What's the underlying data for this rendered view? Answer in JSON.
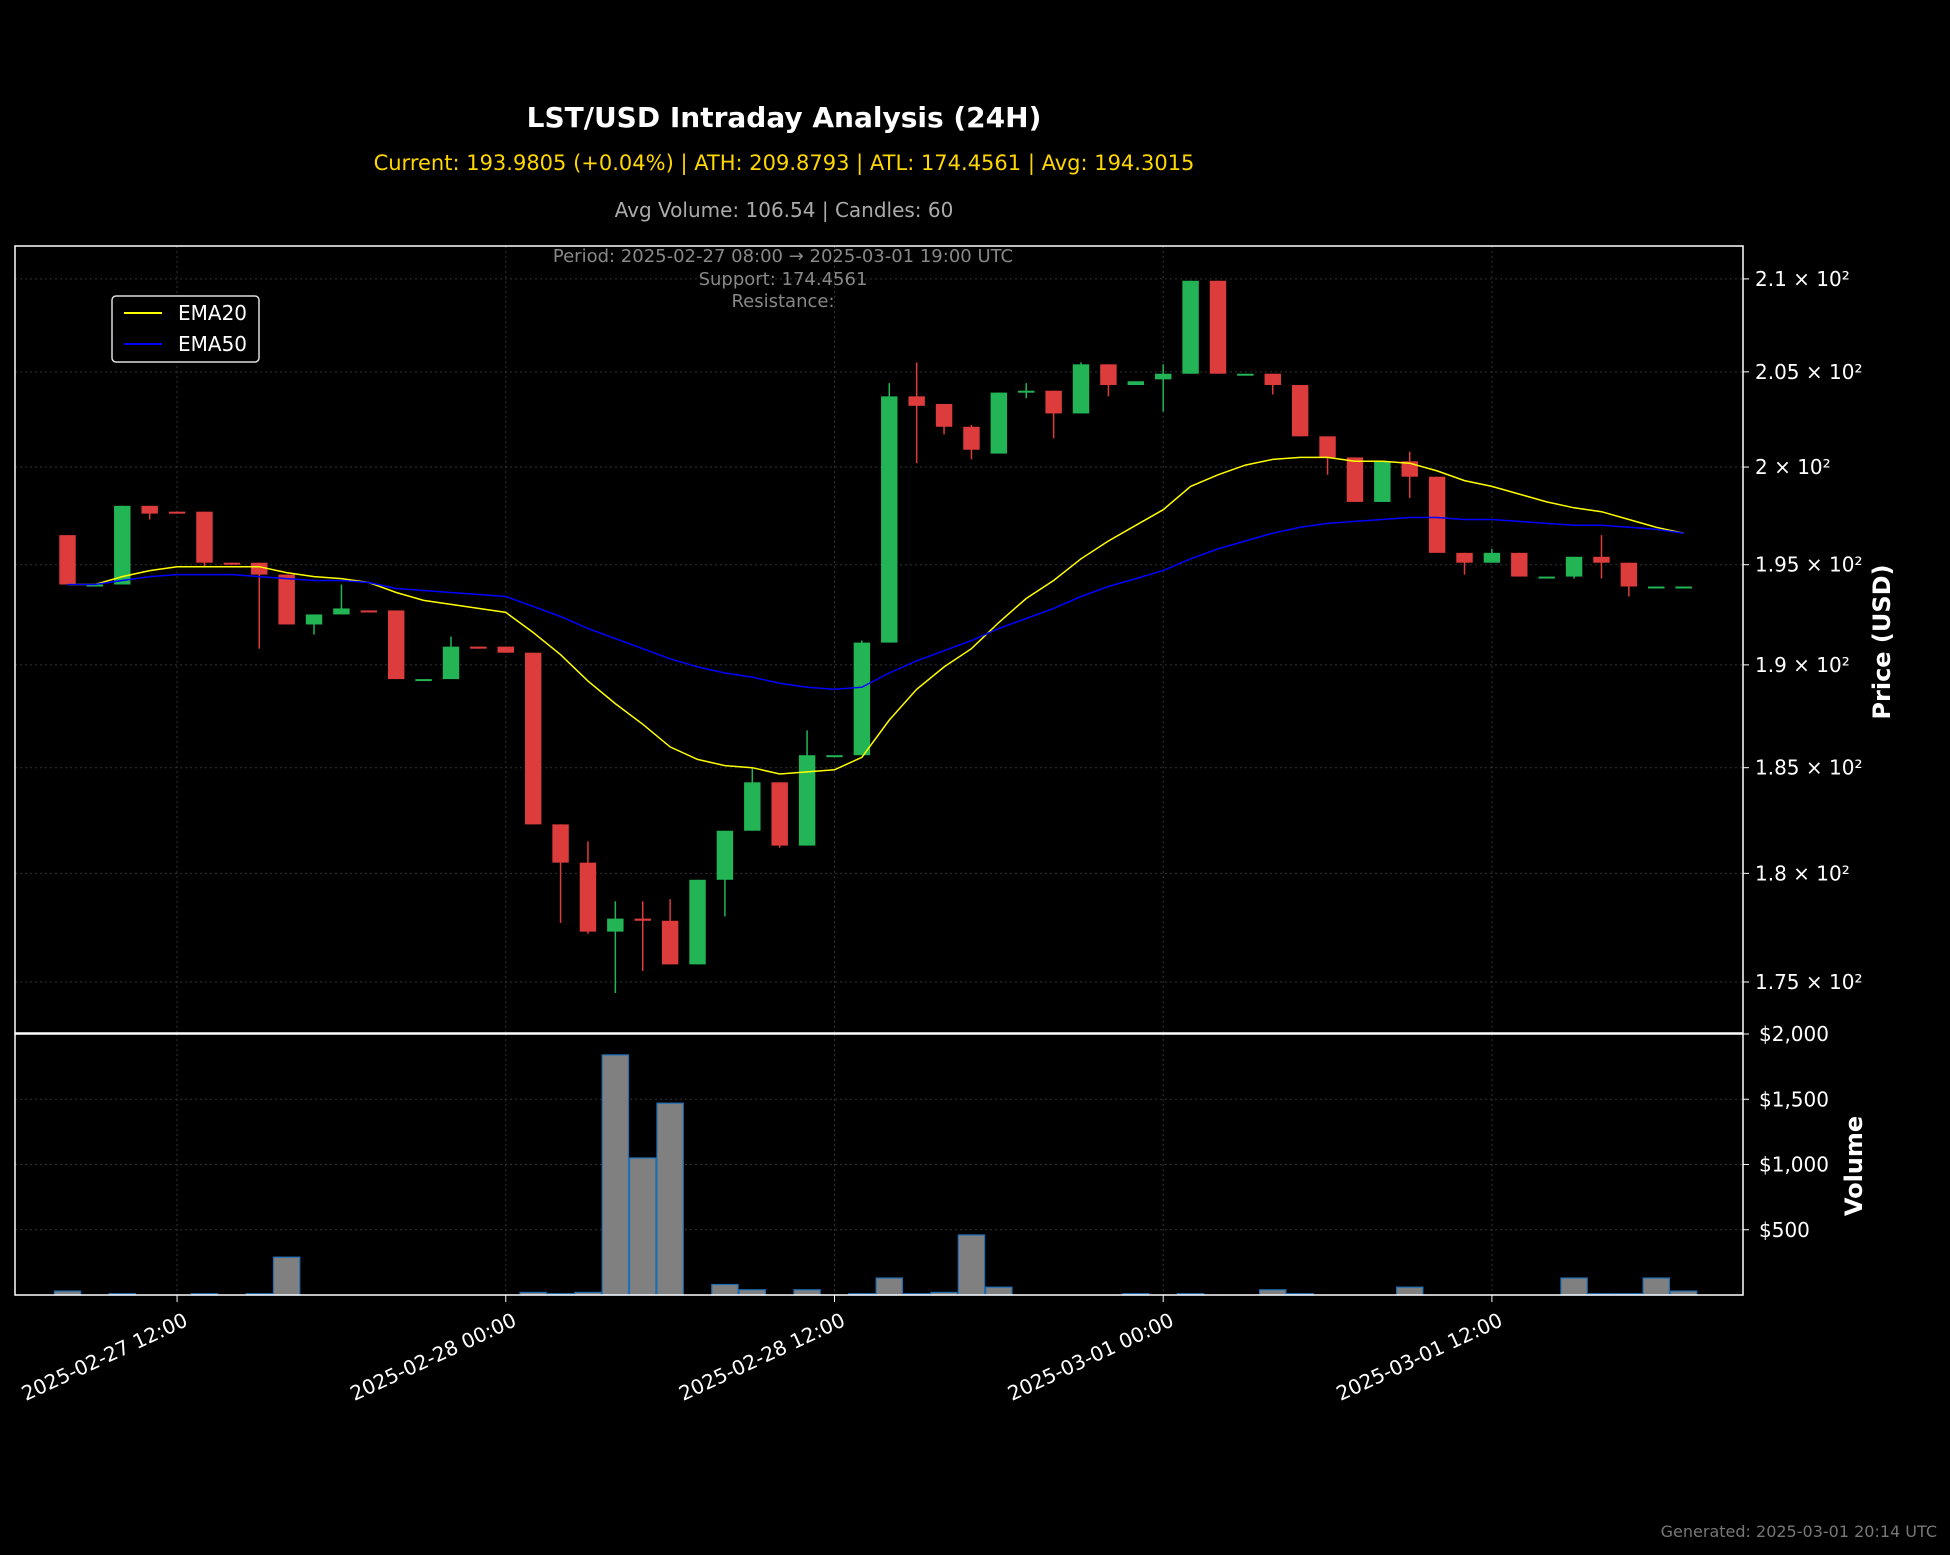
{
  "header": {
    "title": "LST/USD Intraday Analysis (24H)",
    "stats": "Current: 193.9805 (+0.04%) | ATH: 209.8793 | ATL: 174.4561 | Avg: 194.3015",
    "volume_info": "Avg Volume: 106.54 | Candles: 60"
  },
  "annotations": {
    "period": "Period: 2025-02-27 08:00 → 2025-03-01 19:00 UTC",
    "support": "Support: 174.4561",
    "resistance": "Resistance:"
  },
  "footer": {
    "generated": "Generated: 2025-03-01 20:14 UTC"
  },
  "colors": {
    "background": "#000000",
    "up": "#22b455",
    "down": "#dc3c3c",
    "ema20": "#ffff00",
    "ema50": "#0000ff",
    "volume": "#808080",
    "volume_edge": "#1f6fb4",
    "title": "#ffffff",
    "stats": "#ffd700",
    "muted": "#aaaaaa"
  },
  "chart_data": [
    {
      "type": "candlestick",
      "scale": "log",
      "ylabel": "Price (USD)",
      "ylim": [
        172.7,
        211.8
      ],
      "yticks": [
        {
          "value": 175,
          "label": "1.75 × 10²"
        },
        {
          "value": 180,
          "label": "1.8 × 10²"
        },
        {
          "value": 185,
          "label": "1.85 × 10²"
        },
        {
          "value": 190,
          "label": "1.9 × 10²"
        },
        {
          "value": 195,
          "label": "1.95 × 10²"
        },
        {
          "value": 200,
          "label": "2 × 10²"
        },
        {
          "value": 205,
          "label": "2.05 × 10²"
        },
        {
          "value": 210,
          "label": "2.1 × 10²"
        }
      ],
      "xlim": [
        "2025-02-27 06:05",
        "2025-03-01 21:10"
      ],
      "xticks": [
        "2025-02-27 12:00",
        "2025-02-28 00:00",
        "2025-02-28 12:00",
        "2025-03-01 00:00",
        "2025-03-01 12:00"
      ],
      "grid": true,
      "legend": {
        "position": "top-left",
        "entries": [
          "EMA20",
          "EMA50"
        ]
      },
      "candles": [
        {
          "t": "2025-02-27 08:00",
          "o": 196.5,
          "h": 196.5,
          "l": 194.0,
          "c": 194.0
        },
        {
          "t": "2025-02-27 09:00",
          "o": 194.0,
          "h": 194.0,
          "l": 194.0,
          "c": 194.0
        },
        {
          "t": "2025-02-27 10:00",
          "o": 194.0,
          "h": 198.0,
          "l": 194.0,
          "c": 198.0
        },
        {
          "t": "2025-02-27 11:00",
          "o": 198.0,
          "h": 198.0,
          "l": 197.3,
          "c": 197.6
        },
        {
          "t": "2025-02-27 12:00",
          "o": 197.7,
          "h": 197.7,
          "l": 197.6,
          "c": 197.6
        },
        {
          "t": "2025-02-27 13:00",
          "o": 197.7,
          "h": 197.7,
          "l": 194.9,
          "c": 195.1
        },
        {
          "t": "2025-02-27 14:00",
          "o": 195.1,
          "h": 195.1,
          "l": 195.0,
          "c": 195.0
        },
        {
          "t": "2025-02-27 15:00",
          "o": 195.1,
          "h": 195.1,
          "l": 190.8,
          "c": 194.5
        },
        {
          "t": "2025-02-27 16:00",
          "o": 194.5,
          "h": 194.5,
          "l": 192.0,
          "c": 192.0
        },
        {
          "t": "2025-02-27 17:00",
          "o": 192.0,
          "h": 192.5,
          "l": 191.5,
          "c": 192.5
        },
        {
          "t": "2025-02-27 18:00",
          "o": 192.5,
          "h": 194.0,
          "l": 192.5,
          "c": 192.8
        },
        {
          "t": "2025-02-27 19:00",
          "o": 192.7,
          "h": 192.7,
          "l": 192.6,
          "c": 192.6
        },
        {
          "t": "2025-02-27 20:00",
          "o": 192.7,
          "h": 192.7,
          "l": 189.3,
          "c": 189.3
        },
        {
          "t": "2025-02-27 21:00",
          "o": 189.3,
          "h": 189.3,
          "l": 189.3,
          "c": 189.3
        },
        {
          "t": "2025-02-27 22:00",
          "o": 189.3,
          "h": 191.4,
          "l": 189.3,
          "c": 190.9
        },
        {
          "t": "2025-02-27 23:00",
          "o": 190.9,
          "h": 190.9,
          "l": 190.8,
          "c": 190.8
        },
        {
          "t": "2025-02-28 00:00",
          "o": 190.9,
          "h": 190.9,
          "l": 190.6,
          "c": 190.6
        },
        {
          "t": "2025-02-28 01:00",
          "o": 190.6,
          "h": 190.6,
          "l": 182.3,
          "c": 182.3
        },
        {
          "t": "2025-02-28 02:00",
          "o": 182.3,
          "h": 182.3,
          "l": 177.7,
          "c": 180.5
        },
        {
          "t": "2025-02-28 03:00",
          "o": 180.5,
          "h": 181.5,
          "l": 177.2,
          "c": 177.3
        },
        {
          "t": "2025-02-28 04:00",
          "o": 177.3,
          "h": 178.7,
          "l": 174.5,
          "c": 177.9
        },
        {
          "t": "2025-02-28 05:00",
          "o": 177.9,
          "h": 178.7,
          "l": 175.5,
          "c": 177.8
        },
        {
          "t": "2025-02-28 06:00",
          "o": 177.8,
          "h": 178.8,
          "l": 175.8,
          "c": 175.8
        },
        {
          "t": "2025-02-28 07:00",
          "o": 175.8,
          "h": 179.7,
          "l": 175.8,
          "c": 179.7
        },
        {
          "t": "2025-02-28 08:00",
          "o": 179.7,
          "h": 182.0,
          "l": 178.0,
          "c": 182.0
        },
        {
          "t": "2025-02-28 09:00",
          "o": 182.0,
          "h": 185.0,
          "l": 182.0,
          "c": 184.3
        },
        {
          "t": "2025-02-28 10:00",
          "o": 184.3,
          "h": 184.3,
          "l": 181.2,
          "c": 181.3
        },
        {
          "t": "2025-02-28 11:00",
          "o": 181.3,
          "h": 186.8,
          "l": 181.3,
          "c": 185.6
        },
        {
          "t": "2025-02-28 12:00",
          "o": 185.6,
          "h": 185.6,
          "l": 185.6,
          "c": 185.6
        },
        {
          "t": "2025-02-28 13:00",
          "o": 185.6,
          "h": 191.2,
          "l": 185.6,
          "c": 191.1
        },
        {
          "t": "2025-02-28 14:00",
          "o": 191.1,
          "h": 204.4,
          "l": 191.1,
          "c": 203.7
        },
        {
          "t": "2025-02-28 15:00",
          "o": 203.7,
          "h": 205.5,
          "l": 200.2,
          "c": 203.2
        },
        {
          "t": "2025-02-28 16:00",
          "o": 203.3,
          "h": 203.3,
          "l": 201.7,
          "c": 202.1
        },
        {
          "t": "2025-02-28 17:00",
          "o": 202.1,
          "h": 202.2,
          "l": 200.4,
          "c": 200.9
        },
        {
          "t": "2025-02-28 18:00",
          "o": 200.7,
          "h": 203.9,
          "l": 200.7,
          "c": 203.9
        },
        {
          "t": "2025-02-28 19:00",
          "o": 203.9,
          "h": 204.4,
          "l": 203.6,
          "c": 204.0
        },
        {
          "t": "2025-02-28 20:00",
          "o": 204.0,
          "h": 204.0,
          "l": 201.5,
          "c": 202.8
        },
        {
          "t": "2025-02-28 21:00",
          "o": 202.8,
          "h": 205.5,
          "l": 202.8,
          "c": 205.4
        },
        {
          "t": "2025-02-28 22:00",
          "o": 205.4,
          "h": 205.4,
          "l": 203.7,
          "c": 204.3
        },
        {
          "t": "2025-02-28 23:00",
          "o": 204.3,
          "h": 204.5,
          "l": 204.3,
          "c": 204.5
        },
        {
          "t": "2025-03-01 00:00",
          "o": 204.6,
          "h": 205.4,
          "l": 202.9,
          "c": 204.9
        },
        {
          "t": "2025-03-01 01:00",
          "o": 204.9,
          "h": 209.9,
          "l": 204.9,
          "c": 209.9
        },
        {
          "t": "2025-03-01 02:00",
          "o": 209.9,
          "h": 209.9,
          "l": 204.9,
          "c": 204.9
        },
        {
          "t": "2025-03-01 03:00",
          "o": 204.9,
          "h": 204.9,
          "l": 204.9,
          "c": 204.9
        },
        {
          "t": "2025-03-01 04:00",
          "o": 204.9,
          "h": 204.9,
          "l": 203.8,
          "c": 204.3
        },
        {
          "t": "2025-03-01 05:00",
          "o": 204.3,
          "h": 204.3,
          "l": 201.6,
          "c": 201.6
        },
        {
          "t": "2025-03-01 06:00",
          "o": 201.6,
          "h": 201.6,
          "l": 199.6,
          "c": 200.5
        },
        {
          "t": "2025-03-01 07:00",
          "o": 200.5,
          "h": 200.5,
          "l": 198.2,
          "c": 198.2
        },
        {
          "t": "2025-03-01 08:00",
          "o": 198.2,
          "h": 200.3,
          "l": 198.2,
          "c": 200.3
        },
        {
          "t": "2025-03-01 09:00",
          "o": 200.3,
          "h": 200.8,
          "l": 198.4,
          "c": 199.5
        },
        {
          "t": "2025-03-01 10:00",
          "o": 199.5,
          "h": 199.5,
          "l": 195.6,
          "c": 195.6
        },
        {
          "t": "2025-03-01 11:00",
          "o": 195.6,
          "h": 195.6,
          "l": 194.5,
          "c": 195.1
        },
        {
          "t": "2025-03-01 12:00",
          "o": 195.1,
          "h": 195.8,
          "l": 195.1,
          "c": 195.6
        },
        {
          "t": "2025-03-01 13:00",
          "o": 195.6,
          "h": 195.6,
          "l": 194.4,
          "c": 194.4
        },
        {
          "t": "2025-03-01 14:00",
          "o": 194.4,
          "h": 194.4,
          "l": 194.4,
          "c": 194.4
        },
        {
          "t": "2025-03-01 15:00",
          "o": 194.4,
          "h": 195.4,
          "l": 194.3,
          "c": 195.4
        },
        {
          "t": "2025-03-01 16:00",
          "o": 195.4,
          "h": 196.5,
          "l": 194.3,
          "c": 195.1
        },
        {
          "t": "2025-03-01 17:00",
          "o": 195.1,
          "h": 195.1,
          "l": 193.4,
          "c": 193.9
        },
        {
          "t": "2025-03-01 18:00",
          "o": 193.9,
          "h": 193.9,
          "l": 193.9,
          "c": 193.9
        },
        {
          "t": "2025-03-01 19:00",
          "o": 193.9,
          "h": 193.9,
          "l": 193.9,
          "c": 193.9
        }
      ],
      "series": [
        {
          "name": "EMA20",
          "values": [
            194.0,
            194.0,
            194.4,
            194.7,
            194.9,
            194.9,
            194.9,
            194.9,
            194.6,
            194.4,
            194.3,
            194.1,
            193.6,
            193.2,
            193.0,
            192.8,
            192.6,
            191.6,
            190.5,
            189.2,
            188.1,
            187.1,
            186.0,
            185.4,
            185.1,
            185.0,
            184.7,
            184.8,
            184.9,
            185.5,
            187.3,
            188.8,
            189.9,
            190.8,
            192.1,
            193.3,
            194.2,
            195.3,
            196.2,
            197.0,
            197.8,
            199.0,
            199.6,
            200.1,
            200.4,
            200.5,
            200.5,
            200.3,
            200.3,
            200.2,
            199.8,
            199.3,
            199.0,
            198.6,
            198.2,
            197.9,
            197.7,
            197.3,
            196.9,
            196.6
          ]
        },
        {
          "name": "EMA50",
          "values": [
            194.0,
            194.0,
            194.2,
            194.4,
            194.5,
            194.5,
            194.5,
            194.4,
            194.3,
            194.2,
            194.2,
            194.1,
            193.8,
            193.7,
            193.6,
            193.5,
            193.4,
            192.9,
            192.4,
            191.8,
            191.3,
            190.8,
            190.3,
            189.9,
            189.6,
            189.4,
            189.1,
            188.9,
            188.8,
            188.9,
            189.6,
            190.2,
            190.7,
            191.2,
            191.8,
            192.3,
            192.8,
            193.4,
            193.9,
            194.3,
            194.7,
            195.3,
            195.8,
            196.2,
            196.6,
            196.9,
            197.1,
            197.2,
            197.3,
            197.4,
            197.4,
            197.3,
            197.3,
            197.2,
            197.1,
            197.0,
            197.0,
            196.9,
            196.8,
            196.6
          ]
        }
      ]
    },
    {
      "type": "bar",
      "ylabel": "Volume",
      "ylim": [
        0,
        2000
      ],
      "yticks": [
        {
          "value": 500,
          "label": "$500"
        },
        {
          "value": 1000,
          "label": "$1,000"
        },
        {
          "value": 1500,
          "label": "$1,500"
        },
        {
          "value": 2000,
          "label": "$2,000"
        }
      ],
      "grid": true,
      "values": [
        30,
        0,
        10,
        0,
        0,
        10,
        0,
        10,
        290,
        0,
        0,
        0,
        0,
        0,
        0,
        0,
        0,
        20,
        10,
        20,
        1840,
        1050,
        1470,
        0,
        80,
        40,
        0,
        40,
        0,
        10,
        130,
        10,
        20,
        460,
        60,
        0,
        0,
        0,
        0,
        10,
        0,
        10,
        0,
        0,
        40,
        10,
        0,
        0,
        0,
        60,
        0,
        0,
        0,
        0,
        0,
        130,
        10,
        10,
        130,
        30
      ]
    }
  ]
}
